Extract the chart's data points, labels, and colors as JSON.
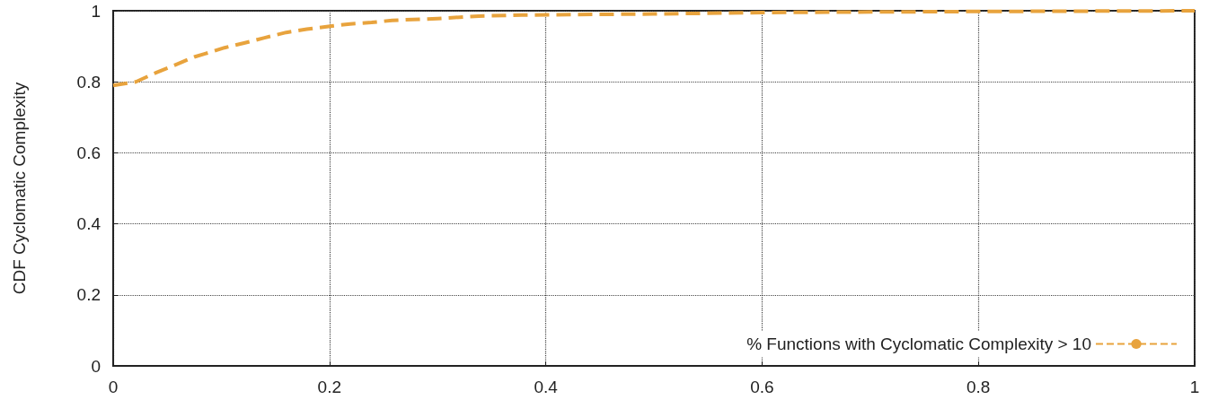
{
  "chart_data": {
    "type": "line",
    "ylabel": "CDF Cyclomatic Complexity",
    "series": [
      {
        "name": "% Functions with Cyclomatic Complexity > 10",
        "color": "#e8a33d",
        "x": [
          0,
          0.021,
          0.04,
          0.057,
          0.075,
          0.085,
          0.103,
          0.121,
          0.14,
          0.16,
          0.179,
          0.199,
          0.219,
          0.239,
          0.258,
          0.3,
          0.338,
          0.378,
          0.5,
          0.6,
          0.8,
          1
        ],
        "values": [
          0.79,
          0.8,
          0.826,
          0.847,
          0.87,
          0.879,
          0.896,
          0.909,
          0.924,
          0.939,
          0.948,
          0.956,
          0.963,
          0.967,
          0.973,
          0.978,
          0.985,
          0.988,
          0.991,
          0.995,
          0.998,
          1
        ]
      }
    ],
    "xlim": [
      0,
      1
    ],
    "xticks": [
      0,
      0.2,
      0.4,
      0.6,
      0.8,
      1
    ],
    "ylim": [
      0,
      1
    ],
    "yticks": [
      0,
      0.2,
      0.4,
      0.6,
      0.8,
      1
    ],
    "grid": true,
    "legend": "bottom right",
    "line_style": "dashed",
    "marker": "none"
  }
}
